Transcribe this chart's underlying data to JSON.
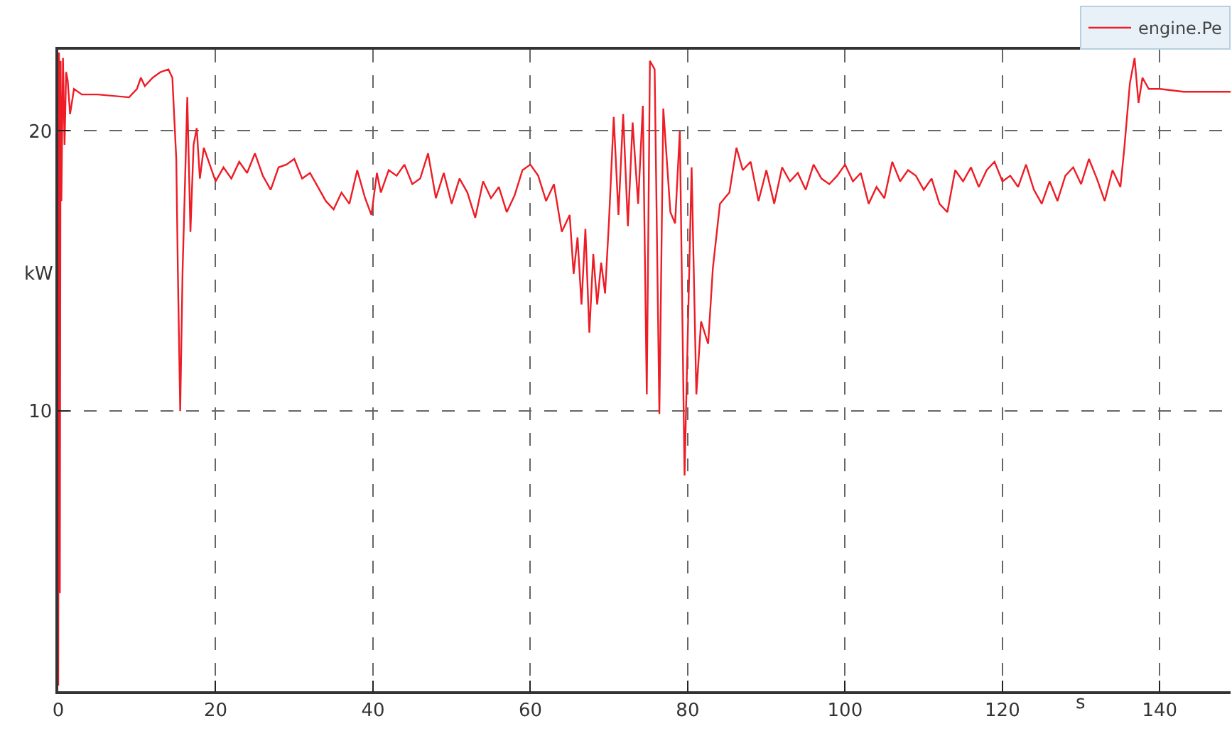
{
  "chart_data": {
    "type": "line",
    "xlabel": "s",
    "ylabel": "kW",
    "xlim": [
      0,
      149
    ],
    "xticks": [
      0,
      20,
      40,
      60,
      80,
      100,
      120,
      140
    ],
    "ylim": [
      0,
      22.9
    ],
    "yticks": [
      10,
      20
    ],
    "grid": true,
    "legend": "top right",
    "marker": "none",
    "line_style": "solid",
    "series": [
      {
        "name": "engine.Pe",
        "color": "#ee1c25",
        "x": [
          0,
          0.1,
          0.2,
          0.3,
          0.4,
          0.6,
          0.8,
          1.0,
          1.2,
          1.5,
          2,
          3,
          5,
          9,
          10,
          10.5,
          11,
          12,
          13,
          14,
          14.5,
          15,
          15.2,
          15.5,
          15.8,
          16,
          16.4,
          16.8,
          17.2,
          17.6,
          18,
          18.5,
          19,
          20,
          21,
          22,
          23,
          24,
          25,
          26,
          27,
          28,
          29,
          30,
          31,
          32,
          33,
          34,
          35,
          36,
          37,
          38,
          39,
          39.8,
          40.5,
          41,
          42,
          43,
          44,
          45,
          46,
          47,
          48,
          49,
          50,
          51,
          52,
          53,
          54,
          55,
          56,
          57,
          58,
          59,
          60,
          61,
          62,
          63,
          64,
          65,
          65.5,
          66,
          66.5,
          67,
          67.5,
          68,
          68.5,
          69,
          69.5,
          70,
          70.6,
          71.2,
          71.8,
          72.4,
          73,
          73.7,
          74.3,
          74.8,
          75.2,
          75.8,
          76.4,
          76.9,
          77.8,
          78.4,
          79,
          79.6,
          80.5,
          81.1,
          81.7,
          82.6,
          83.2,
          84.1,
          85.3,
          86.2,
          87,
          88,
          89,
          90,
          91,
          92,
          93,
          94,
          95,
          96,
          97,
          98,
          99,
          100,
          101,
          102,
          103,
          104,
          105,
          106,
          107,
          108,
          109,
          110,
          111,
          112,
          113,
          114,
          115,
          116,
          117,
          118,
          119,
          120,
          121,
          122,
          123,
          124,
          125,
          126,
          127,
          128,
          129,
          130,
          131,
          132,
          133,
          134,
          135,
          135.5,
          136.2,
          136.8,
          137.3,
          137.8,
          138.6,
          140,
          143,
          146,
          149
        ],
        "values": [
          0.2,
          22.8,
          3.5,
          22.5,
          17.5,
          22.6,
          19.5,
          22.1,
          21.8,
          20.6,
          21.5,
          21.3,
          21.3,
          21.2,
          21.5,
          21.9,
          21.6,
          21.9,
          22.1,
          22.2,
          21.9,
          19,
          15,
          10,
          15,
          17,
          21.2,
          16.4,
          19.5,
          20.1,
          18.3,
          19.4,
          19,
          18.2,
          18.7,
          18.3,
          18.9,
          18.5,
          19.2,
          18.4,
          17.9,
          18.7,
          18.8,
          19.0,
          18.3,
          18.5,
          18.0,
          17.5,
          17.2,
          17.8,
          17.4,
          18.6,
          17.6,
          17.0,
          18.5,
          17.8,
          18.6,
          18.4,
          18.8,
          18.1,
          18.3,
          19.2,
          17.6,
          18.5,
          17.4,
          18.3,
          17.8,
          16.9,
          18.2,
          17.6,
          18.0,
          17.1,
          17.7,
          18.6,
          18.8,
          18.4,
          17.5,
          18.1,
          16.4,
          17.0,
          14.9,
          16.2,
          13.8,
          16.5,
          12.8,
          15.6,
          13.8,
          15.3,
          14.2,
          16.8,
          20.5,
          17.0,
          20.6,
          16.6,
          20.3,
          17.4,
          20.9,
          10.6,
          22.5,
          22.2,
          9.9,
          20.8,
          17.1,
          16.7,
          20.0,
          7.7,
          18.7,
          10.6,
          13.2,
          12.4,
          15.1,
          17.4,
          17.8,
          19.4,
          18.6,
          18.9,
          17.5,
          18.6,
          17.4,
          18.7,
          18.2,
          18.5,
          17.9,
          18.8,
          18.3,
          18.1,
          18.4,
          18.8,
          18.2,
          18.5,
          17.4,
          18.0,
          17.6,
          18.9,
          18.2,
          18.6,
          18.4,
          17.9,
          18.3,
          17.4,
          17.1,
          18.6,
          18.2,
          18.7,
          18.0,
          18.6,
          18.9,
          18.2,
          18.4,
          18.0,
          18.8,
          17.9,
          17.4,
          18.2,
          17.5,
          18.4,
          18.7,
          18.1,
          19.0,
          18.3,
          17.5,
          18.6,
          18.0,
          19.4,
          21.7,
          22.6,
          21.0,
          21.9,
          21.5,
          21.5,
          21.4,
          21.4,
          21.4
        ]
      }
    ]
  }
}
